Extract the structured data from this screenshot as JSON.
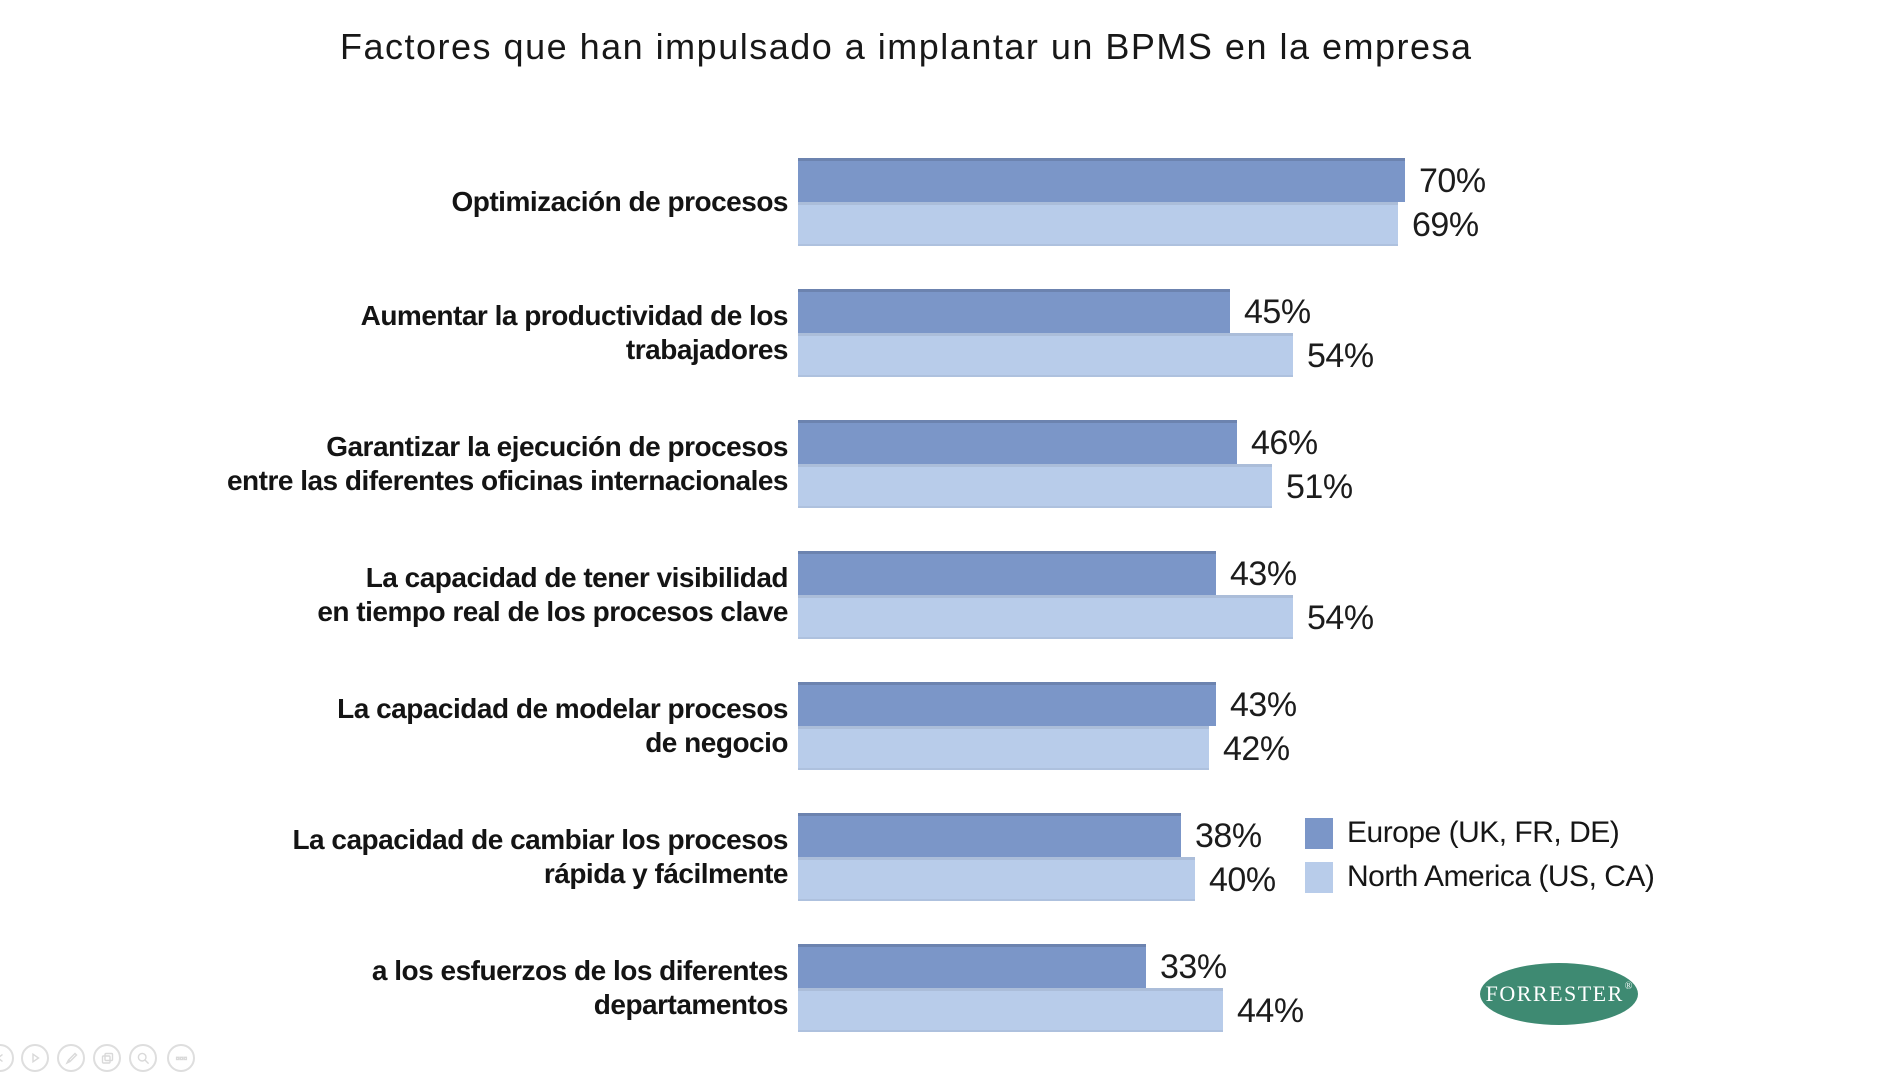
{
  "title": "Factores que han impulsado a implantar un BPMS en la empresa",
  "chart_data": {
    "type": "bar",
    "orientation": "horizontal",
    "title": "Factores que han impulsado a implantar un BPMS en la empresa",
    "value_suffix": "%",
    "xlim": [
      0,
      100
    ],
    "grid": false,
    "data_labels": true,
    "legend_position": "right-center",
    "categories": [
      "Optimización de procesos",
      "Aumentar la productividad de los\ntrabajadores",
      "Garantizar la ejecución de procesos\nentre las diferentes oficinas internacionales",
      "La capacidad de tener visibilidad\nen tiempo real de los procesos clave",
      "La capacidad de modelar procesos\nde negocio",
      "La capacidad de cambiar los procesos\nrápida y fácilmente",
      "a los esfuerzos de los diferentes\ndepartamentos"
    ],
    "series": [
      {
        "name": "Europe (UK, FR, DE)",
        "color": "#7b96c8",
        "values": [
          70,
          45,
          46,
          43,
          43,
          38,
          33
        ]
      },
      {
        "name": "North America (US, CA)",
        "color": "#b8ccea",
        "values": [
          69,
          54,
          51,
          54,
          42,
          40,
          44
        ]
      }
    ]
  },
  "branding": {
    "logo_text": "FORRESTER",
    "registered_mark": "®",
    "logo_color": "#3e8a72"
  },
  "toolbar": {
    "buttons": [
      "previous-slide",
      "next-slide",
      "pen",
      "all-slides",
      "zoom",
      "more-options"
    ]
  }
}
